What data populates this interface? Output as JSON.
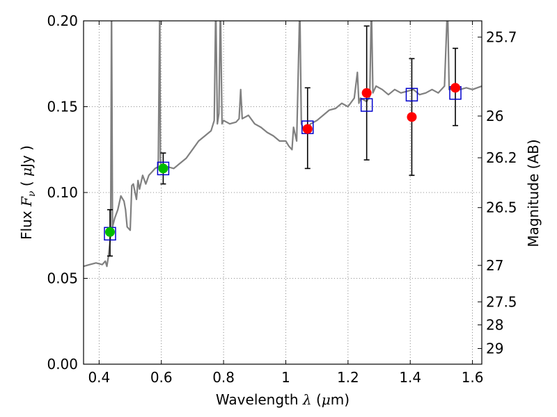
{
  "chart_data": {
    "type": "scatter",
    "xlabel": "Wavelength  λ (μm)",
    "ylabel": "Flux  Fν  ( μJy )",
    "ylabel_parts": {
      "prefix": "Flux  ",
      "symbol": "F",
      "subscript": "ν",
      "open": "  ( ",
      "mu": "μ",
      "suffix": "Jy )"
    },
    "xlabel_parts": {
      "prefix": "Wavelength  ",
      "symbol": "λ",
      "open": " (",
      "mu": "μ",
      "suffix": "m)"
    },
    "y2label": "Magnitude (AB)",
    "xlim": [
      0.35,
      1.63
    ],
    "ylim": [
      0.0,
      0.2
    ],
    "grid": true,
    "xticks": [
      0.4,
      0.6,
      0.8,
      1.0,
      1.2,
      1.4,
      1.6
    ],
    "xtick_labels": [
      "0.4",
      "0.6",
      "0.8",
      "1",
      "1.2",
      "1.4",
      "1.6"
    ],
    "yticks": [
      0.0,
      0.05,
      0.1,
      0.15,
      0.2
    ],
    "ytick_labels": [
      "0.00",
      "0.05",
      "0.10",
      "0.15",
      "0.20"
    ],
    "mag_ticks": [
      25.7,
      26,
      26.2,
      26.5,
      27,
      27.5,
      28,
      29
    ],
    "mag_tick_labels": [
      "25.7",
      "26",
      "26.2",
      "26.5",
      "27",
      "27.5",
      "28",
      "29"
    ],
    "colors": {
      "spectrum": "#808080",
      "model": "#0000cc",
      "hst": "#00bb00",
      "ir": "#ff0000",
      "errorbar": "#000000"
    },
    "model_points": {
      "x": [
        0.435,
        0.606,
        1.07,
        1.26,
        1.405,
        1.545
      ],
      "y": [
        0.076,
        0.114,
        0.138,
        0.151,
        0.157,
        0.158
      ]
    },
    "green_points": {
      "x": [
        0.435,
        0.606
      ],
      "y": [
        0.077,
        0.114
      ]
    },
    "red_points": {
      "x": [
        1.07,
        1.26,
        1.405,
        1.545
      ],
      "y": [
        0.137,
        0.158,
        0.144,
        0.161
      ]
    },
    "errorbars": [
      {
        "x": 0.435,
        "y": 0.077,
        "lo": 0.063,
        "hi": 0.09
      },
      {
        "x": 0.606,
        "y": 0.114,
        "lo": 0.105,
        "hi": 0.123
      },
      {
        "x": 1.07,
        "y": 0.137,
        "lo": 0.114,
        "hi": 0.161
      },
      {
        "x": 1.26,
        "y": 0.158,
        "lo": 0.119,
        "hi": 0.197
      },
      {
        "x": 1.405,
        "y": 0.144,
        "lo": 0.11,
        "hi": 0.178
      },
      {
        "x": 1.545,
        "y": 0.161,
        "lo": 0.139,
        "hi": 0.184
      }
    ],
    "spectrum": [
      [
        0.35,
        0.057
      ],
      [
        0.37,
        0.058
      ],
      [
        0.39,
        0.059
      ],
      [
        0.41,
        0.058
      ],
      [
        0.42,
        0.06
      ],
      [
        0.425,
        0.057
      ],
      [
        0.43,
        0.063
      ],
      [
        0.437,
        0.075
      ],
      [
        0.44,
        0.21
      ],
      [
        0.443,
        0.08
      ],
      [
        0.45,
        0.085
      ],
      [
        0.46,
        0.09
      ],
      [
        0.47,
        0.098
      ],
      [
        0.48,
        0.095
      ],
      [
        0.485,
        0.09
      ],
      [
        0.49,
        0.08
      ],
      [
        0.5,
        0.078
      ],
      [
        0.505,
        0.104
      ],
      [
        0.51,
        0.105
      ],
      [
        0.52,
        0.096
      ],
      [
        0.525,
        0.107
      ],
      [
        0.53,
        0.102
      ],
      [
        0.54,
        0.11
      ],
      [
        0.55,
        0.105
      ],
      [
        0.56,
        0.11
      ],
      [
        0.57,
        0.112
      ],
      [
        0.58,
        0.114
      ],
      [
        0.59,
        0.115
      ],
      [
        0.595,
        0.21
      ],
      [
        0.597,
        0.12
      ],
      [
        0.6,
        0.113
      ],
      [
        0.62,
        0.115
      ],
      [
        0.64,
        0.114
      ],
      [
        0.66,
        0.117
      ],
      [
        0.68,
        0.12
      ],
      [
        0.7,
        0.125
      ],
      [
        0.72,
        0.13
      ],
      [
        0.74,
        0.133
      ],
      [
        0.76,
        0.136
      ],
      [
        0.77,
        0.142
      ],
      [
        0.775,
        0.21
      ],
      [
        0.78,
        0.14
      ],
      [
        0.785,
        0.146
      ],
      [
        0.79,
        0.21
      ],
      [
        0.795,
        0.14
      ],
      [
        0.8,
        0.142
      ],
      [
        0.82,
        0.14
      ],
      [
        0.84,
        0.141
      ],
      [
        0.85,
        0.143
      ],
      [
        0.855,
        0.16
      ],
      [
        0.86,
        0.143
      ],
      [
        0.88,
        0.145
      ],
      [
        0.9,
        0.14
      ],
      [
        0.92,
        0.138
      ],
      [
        0.94,
        0.135
      ],
      [
        0.96,
        0.133
      ],
      [
        0.98,
        0.13
      ],
      [
        1.0,
        0.13
      ],
      [
        1.01,
        0.127
      ],
      [
        1.02,
        0.125
      ],
      [
        1.025,
        0.138
      ],
      [
        1.035,
        0.13
      ],
      [
        1.045,
        0.21
      ],
      [
        1.05,
        0.14
      ],
      [
        1.06,
        0.136
      ],
      [
        1.08,
        0.14
      ],
      [
        1.1,
        0.142
      ],
      [
        1.12,
        0.145
      ],
      [
        1.14,
        0.148
      ],
      [
        1.16,
        0.149
      ],
      [
        1.18,
        0.152
      ],
      [
        1.2,
        0.15
      ],
      [
        1.22,
        0.155
      ],
      [
        1.23,
        0.17
      ],
      [
        1.235,
        0.152
      ],
      [
        1.24,
        0.155
      ],
      [
        1.26,
        0.153
      ],
      [
        1.27,
        0.156
      ],
      [
        1.275,
        0.21
      ],
      [
        1.28,
        0.158
      ],
      [
        1.29,
        0.162
      ],
      [
        1.31,
        0.16
      ],
      [
        1.33,
        0.157
      ],
      [
        1.35,
        0.16
      ],
      [
        1.37,
        0.158
      ],
      [
        1.39,
        0.159
      ],
      [
        1.41,
        0.16
      ],
      [
        1.43,
        0.157
      ],
      [
        1.45,
        0.158
      ],
      [
        1.47,
        0.16
      ],
      [
        1.49,
        0.158
      ],
      [
        1.5,
        0.16
      ],
      [
        1.51,
        0.162
      ],
      [
        1.52,
        0.21
      ],
      [
        1.525,
        0.16
      ],
      [
        1.54,
        0.161
      ],
      [
        1.56,
        0.16
      ],
      [
        1.58,
        0.161
      ],
      [
        1.6,
        0.16
      ],
      [
        1.63,
        0.162
      ]
    ]
  }
}
